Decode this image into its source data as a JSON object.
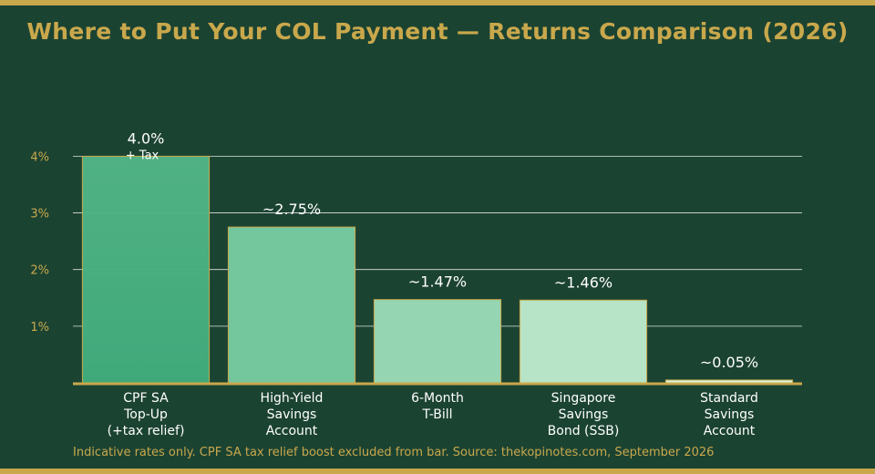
{
  "chart_data": {
    "type": "bar",
    "title": "Where to Put Your COL Payment — Returns Comparison (2026)",
    "xlabel": "",
    "ylabel": "",
    "ylim": [
      0,
      4.75
    ],
    "yticks": [
      1,
      2,
      3,
      4
    ],
    "ytick_labels": [
      "1%",
      "2%",
      "3%",
      "4%"
    ],
    "grid": true,
    "categories": [
      [
        "CPF SA",
        "Top-Up",
        "(+tax relief)"
      ],
      [
        "High-Yield",
        "Savings",
        "Account"
      ],
      [
        "6-Month",
        "T-Bill"
      ],
      [
        "Singapore",
        "Savings",
        "Bond (SSB)"
      ],
      [
        "Standard",
        "Savings",
        "Account"
      ]
    ],
    "values": [
      4.0,
      2.75,
      1.47,
      1.46,
      0.05
    ],
    "value_labels": [
      "4.0%",
      "~2.75%",
      "~1.47%",
      "~1.46%",
      "~0.05%"
    ],
    "value_sublabels": [
      "+ Tax",
      "",
      "",
      "",
      ""
    ],
    "colors": [
      "#52b788",
      "#74c69d",
      "#95d5b2",
      "#b7e4c7",
      "#d8f3dc"
    ],
    "bar_edge_color": "#c9a84c",
    "note": "Indicative rates only. CPF SA tax relief boost excluded from bar. Source: thekopinotes.com, September 2026"
  }
}
